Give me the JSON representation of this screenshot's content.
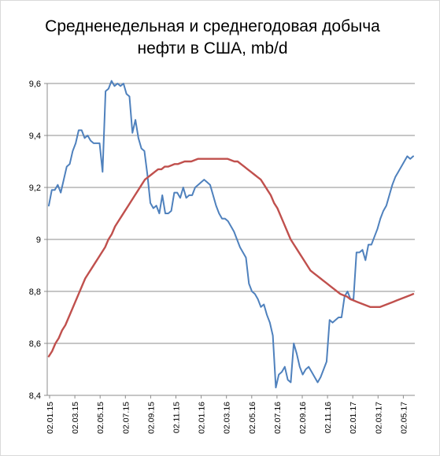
{
  "chart_data": {
    "type": "line",
    "title_line1": "Средненедельная и среднегодовая добыча",
    "title_line2": "нефти в США, mb/d",
    "xlabel": "",
    "ylabel": "",
    "ylim": [
      8.4,
      9.6
    ],
    "yticks": [
      8.4,
      8.6,
      8.8,
      9.0,
      9.2,
      9.4,
      9.6
    ],
    "ytick_labels": [
      "8,4",
      "8,6",
      "8,8",
      "9",
      "9,2",
      "9,4",
      "9,6"
    ],
    "xtick_labels": [
      "02.01.15",
      "02.03.15",
      "02.05.15",
      "02.07.15",
      "02.09.15",
      "02.11.15",
      "02.01.16",
      "02.03.16",
      "02.05.16",
      "02.07.16",
      "02.09.16",
      "02.11.16",
      "02.01.17",
      "02.03.17",
      "02.05.17"
    ],
    "grid": true,
    "legend": "none",
    "series": [
      {
        "color": "#4f81bd",
        "values": [
          9.13,
          9.19,
          9.19,
          9.21,
          9.18,
          9.23,
          9.28,
          9.29,
          9.34,
          9.37,
          9.42,
          9.42,
          9.39,
          9.4,
          9.38,
          9.37,
          9.37,
          9.37,
          9.26,
          9.57,
          9.58,
          9.61,
          9.59,
          9.6,
          9.59,
          9.6,
          9.56,
          9.55,
          9.41,
          9.46,
          9.39,
          9.35,
          9.34,
          9.25,
          9.14,
          9.12,
          9.13,
          9.1,
          9.17,
          9.1,
          9.1,
          9.11,
          9.18,
          9.18,
          9.16,
          9.2,
          9.16,
          9.17,
          9.17,
          9.2,
          9.21,
          9.22,
          9.23,
          9.22,
          9.21,
          9.17,
          9.13,
          9.1,
          9.08,
          9.08,
          9.07,
          9.05,
          9.03,
          9.0,
          8.97,
          8.95,
          8.93,
          8.83,
          8.8,
          8.79,
          8.77,
          8.74,
          8.75,
          8.71,
          8.68,
          8.63,
          8.43,
          8.48,
          8.49,
          8.51,
          8.46,
          8.45,
          8.6,
          8.56,
          8.51,
          8.48,
          8.5,
          8.51,
          8.49,
          8.47,
          8.45,
          8.47,
          8.5,
          8.53,
          8.69,
          8.68,
          8.69,
          8.7,
          8.7,
          8.78,
          8.8,
          8.77,
          8.77,
          8.95,
          8.95,
          8.96,
          8.92,
          8.98,
          8.98,
          9.01,
          9.04,
          9.08,
          9.11,
          9.13,
          9.17,
          9.21,
          9.24,
          9.26,
          9.28,
          9.3,
          9.32,
          9.31,
          9.32
        ]
      },
      {
        "color": "#c0504d",
        "values": [
          8.55,
          8.57,
          8.6,
          8.62,
          8.65,
          8.67,
          8.7,
          8.73,
          8.76,
          8.79,
          8.82,
          8.85,
          8.87,
          8.89,
          8.91,
          8.93,
          8.95,
          8.97,
          9.0,
          9.02,
          9.05,
          9.07,
          9.09,
          9.11,
          9.13,
          9.15,
          9.17,
          9.19,
          9.21,
          9.23,
          9.24,
          9.25,
          9.26,
          9.27,
          9.27,
          9.28,
          9.28,
          9.285,
          9.29,
          9.29,
          9.295,
          9.3,
          9.3,
          9.3,
          9.305,
          9.31,
          9.31,
          9.31,
          9.31,
          9.31,
          9.31,
          9.31,
          9.31,
          9.31,
          9.31,
          9.305,
          9.3,
          9.3,
          9.29,
          9.28,
          9.27,
          9.26,
          9.25,
          9.24,
          9.23,
          9.21,
          9.19,
          9.17,
          9.14,
          9.12,
          9.09,
          9.06,
          9.03,
          9.0,
          8.98,
          8.96,
          8.94,
          8.92,
          8.9,
          8.88,
          8.87,
          8.86,
          8.85,
          8.84,
          8.83,
          8.82,
          8.81,
          8.8,
          8.79,
          8.785,
          8.78,
          8.77,
          8.765,
          8.76,
          8.755,
          8.75,
          8.745,
          8.74,
          8.74,
          8.74,
          8.74,
          8.745,
          8.75,
          8.755,
          8.76,
          8.765,
          8.77,
          8.775,
          8.78,
          8.785,
          8.79
        ]
      }
    ]
  }
}
